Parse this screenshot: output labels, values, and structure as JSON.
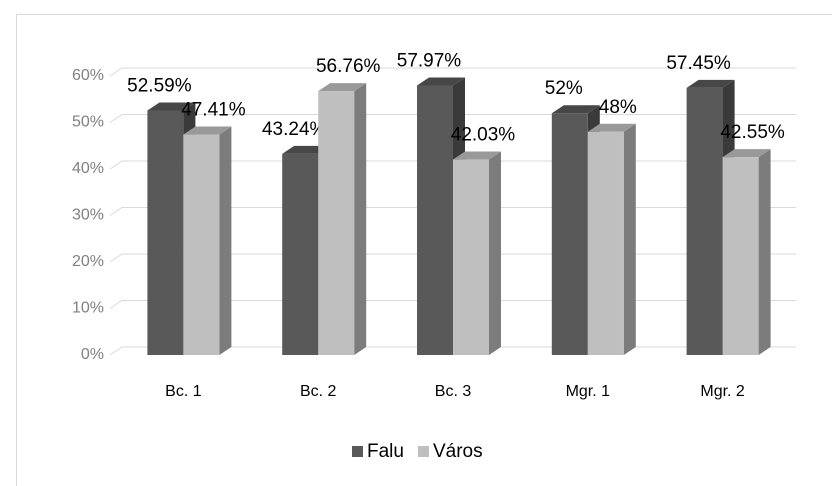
{
  "chart_data": {
    "type": "bar3d",
    "categories": [
      "Bc. 1",
      "Bc. 2",
      "Bc. 3",
      "Mgr. 1",
      "Mgr. 2"
    ],
    "series": [
      {
        "name": "Falu",
        "color": "#595959",
        "values": [
          52.59,
          43.24,
          57.97,
          52,
          57.45
        ],
        "value_labels": [
          "52.59%",
          "43.24%",
          "57.97%",
          "52%",
          "57.45%"
        ]
      },
      {
        "name": "Város",
        "color": "#bfbfbf",
        "values": [
          47.41,
          56.76,
          42.03,
          48,
          42.55
        ],
        "value_labels": [
          "47.41%",
          "56.76%",
          "42.03%",
          "48%",
          "42.55%"
        ]
      }
    ],
    "ylim": [
      0,
      60
    ],
    "yticks": [
      {
        "value": 0,
        "label": "0%"
      },
      {
        "value": 10,
        "label": "10%"
      },
      {
        "value": 20,
        "label": "20%"
      },
      {
        "value": 30,
        "label": "30%"
      },
      {
        "value": 40,
        "label": "40%"
      },
      {
        "value": 50,
        "label": "50%"
      },
      {
        "value": 60,
        "label": "60%"
      }
    ],
    "grid": true,
    "legend": "bottom"
  }
}
